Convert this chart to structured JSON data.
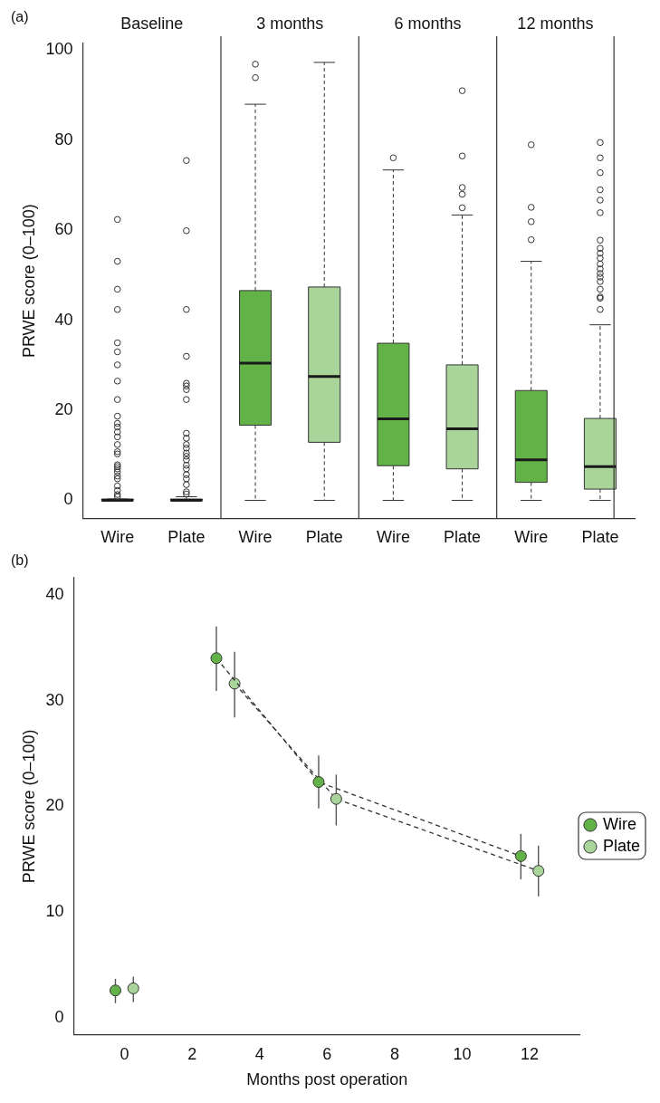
{
  "chart_data": [
    {
      "type": "box",
      "ylabel": "PRWE score (0–100)",
      "annotations": [
        "(a)",
        "Baseline",
        "3 months",
        "6 months",
        "12 months"
      ],
      "categories": [
        "Wire",
        "Plate",
        "Wire",
        "Plate",
        "Wire",
        "Plate",
        "Wire",
        "Plate"
      ],
      "colors": [
        "#62b247",
        "#a9d49a",
        "#62b247",
        "#a9d49a",
        "#62b247",
        "#a9d49a",
        "#62b247",
        "#a9d49a"
      ],
      "boxes": [
        {
          "low": 0,
          "q1": 0,
          "median": 0,
          "q3": 0.3,
          "high": 0.3,
          "outliers": [
            62.4,
            53.1,
            46.9,
            42.4,
            35.0,
            33.0,
            30.1,
            26.5,
            22.4,
            18.7,
            17.1,
            16.3,
            15.2,
            14.1,
            12.4,
            10.8,
            10.3,
            7.9,
            7.5,
            7.0,
            6.3,
            5.4,
            4.8,
            3.2,
            2.2,
            1.3,
            0.8
          ]
        },
        {
          "low": 0,
          "q1": 0,
          "median": 0,
          "q3": 0.3,
          "high": 0.8,
          "outliers": [
            75.5,
            59.9,
            42.4,
            32.0,
            26.0,
            25.4,
            24.6,
            22.4,
            14.9,
            13.8,
            12.4,
            11.6,
            10.5,
            9.8,
            9.0,
            7.8,
            7.0,
            5.7,
            4.8,
            3.5,
            1.9,
            1.4
          ]
        },
        {
          "low": 0,
          "q1": 16.7,
          "median": 30.5,
          "q3": 46.6,
          "high": 88.0,
          "outliers": [
            96.9,
            93.9
          ]
        },
        {
          "low": 0,
          "q1": 12.9,
          "median": 27.5,
          "q3": 47.4,
          "high": 97.3
        },
        {
          "low": 0,
          "q1": 7.7,
          "median": 18.1,
          "q3": 34.9,
          "high": 73.4,
          "outliers": [
            76.1
          ]
        },
        {
          "low": 0,
          "q1": 7.0,
          "median": 15.9,
          "q3": 30.1,
          "high": 63.4,
          "outliers": [
            91.0,
            76.5,
            69.5,
            68.0,
            65.0
          ]
        },
        {
          "low": 0,
          "q1": 4.0,
          "median": 9.0,
          "q3": 24.4,
          "high": 53.1,
          "outliers": [
            79.0,
            65.1,
            61.9,
            57.9
          ]
        },
        {
          "low": 0,
          "q1": 2.5,
          "median": 7.5,
          "q3": 18.2,
          "high": 39.0,
          "outliers": [
            79.5,
            76.1,
            72.8,
            69.0,
            66.7,
            63.9,
            57.8,
            56.0,
            54.9,
            53.8,
            52.5,
            51.4,
            50.4,
            49.6,
            48.6,
            46.9,
            45.2,
            44.9,
            42.4
          ]
        }
      ],
      "ylim": [
        -4,
        101.5
      ],
      "yticks": [
        0,
        20,
        40,
        60,
        80,
        100
      ]
    },
    {
      "type": "line",
      "xlabel": "Months post operation",
      "ylabel": "PRWE score (0–100)",
      "annotations": [
        "(b)"
      ],
      "series": [
        {
          "name": "Wire",
          "color": "#62b247",
          "x": [
            2.72,
            5.75,
            11.74
          ],
          "values": [
            34.0,
            22.3,
            15.3
          ],
          "errors": [
            [
              30.9,
              37.0
            ],
            [
              19.8,
              24.8
            ],
            [
              13.1,
              17.4
            ]
          ]
        },
        {
          "name": "Plate",
          "color": "#a9d49a",
          "x": [
            3.26,
            6.27,
            12.26
          ],
          "values": [
            31.6,
            20.7,
            13.9
          ],
          "errors": [
            [
              28.4,
              34.6
            ],
            [
              18.2,
              23.0
            ],
            [
              11.5,
              16.3
            ]
          ]
        },
        {
          "type": "scatter",
          "color": "#62b247",
          "x": [
            -0.27
          ],
          "values": [
            2.6
          ],
          "errors": [
            [
              1.4,
              3.7
            ]
          ]
        },
        {
          "type": "scatter",
          "color": "#a9d49a",
          "x": [
            0.26
          ],
          "values": [
            2.8
          ],
          "errors": [
            [
              1.5,
              3.9
            ]
          ]
        }
      ],
      "xlim": [
        -1.5,
        13.5
      ],
      "xticks": [
        0,
        2,
        4,
        6,
        8,
        10,
        12
      ],
      "ylim": [
        -1.6,
        41.6
      ],
      "yticks": [
        0,
        10,
        20,
        30,
        40
      ],
      "legend": "right",
      "marker": "circle",
      "line_style": "dashed"
    }
  ]
}
